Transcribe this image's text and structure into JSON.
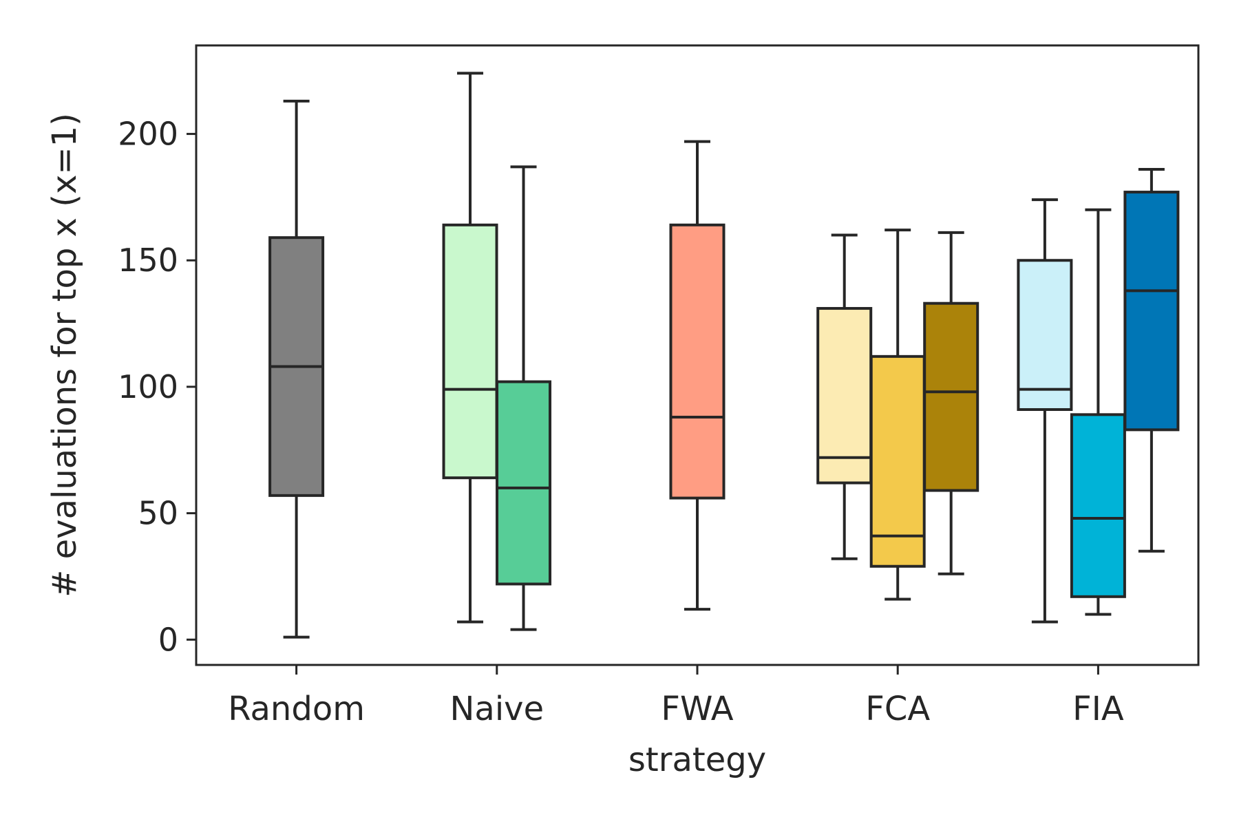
{
  "chart_data": {
    "type": "boxplot",
    "xlabel": "strategy",
    "ylabel": "# evaluations for top x (x=1)",
    "ylim": [
      -10,
      235
    ],
    "yticks": [
      0,
      50,
      100,
      150,
      200
    ],
    "grid": false,
    "legend": "none",
    "categories": [
      "Random",
      "Naive",
      "FWA",
      "FCA",
      "FIA"
    ],
    "groups": [
      {
        "category": "Random",
        "boxes": [
          {
            "whisker_low": 1,
            "q1": 57,
            "median": 108,
            "q3": 159,
            "whisker_high": 213,
            "color": "#808080"
          }
        ]
      },
      {
        "category": "Naive",
        "boxes": [
          {
            "whisker_low": 7,
            "q1": 64,
            "median": 99,
            "q3": 164,
            "whisker_high": 224,
            "color": "#c9f8cd"
          },
          {
            "whisker_low": 4,
            "q1": 22,
            "median": 60,
            "q3": 102,
            "whisker_high": 187,
            "color": "#57cd97"
          }
        ]
      },
      {
        "category": "FWA",
        "boxes": [
          {
            "whisker_low": 12,
            "q1": 56,
            "median": 88,
            "q3": 164,
            "whisker_high": 197,
            "color": "#ff9d83"
          }
        ]
      },
      {
        "category": "FCA",
        "boxes": [
          {
            "whisker_low": 32,
            "q1": 62,
            "median": 72,
            "q3": 131,
            "whisker_high": 160,
            "color": "#fcebb3"
          },
          {
            "whisker_low": 16,
            "q1": 29,
            "median": 41,
            "q3": 112,
            "whisker_high": 162,
            "color": "#f3c94b"
          },
          {
            "whisker_low": 26,
            "q1": 59,
            "median": 98,
            "q3": 133,
            "whisker_high": 161,
            "color": "#ab830a"
          }
        ]
      },
      {
        "category": "FIA",
        "boxes": [
          {
            "whisker_low": 7,
            "q1": 91,
            "median": 99,
            "q3": 150,
            "whisker_high": 174,
            "color": "#cbf0f9"
          },
          {
            "whisker_low": 10,
            "q1": 17,
            "median": 48,
            "q3": 89,
            "whisker_high": 170,
            "color": "#00b3d7"
          },
          {
            "whisker_low": 35,
            "q1": 83,
            "median": 138,
            "q3": 177,
            "whisker_high": 186,
            "color": "#0076b6"
          }
        ]
      }
    ]
  }
}
